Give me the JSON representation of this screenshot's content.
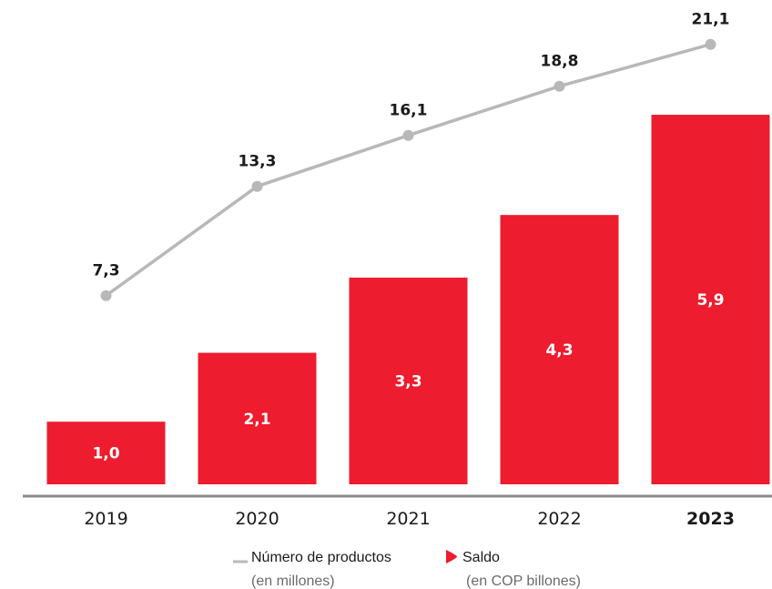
{
  "chart_data": {
    "type": "bar",
    "categories": [
      "2019",
      "2020",
      "2021",
      "2022",
      "2023"
    ],
    "highlight_category": "2023",
    "series": [
      {
        "name": "Saldo",
        "unit": "(en COP billones)",
        "type": "bar",
        "values": [
          1.0,
          2.1,
          3.3,
          4.3,
          5.9
        ],
        "labels": [
          "1,0",
          "2,1",
          "3,3",
          "4,3",
          "5,9"
        ],
        "color": "#ED1C2E"
      },
      {
        "name": "Número de productos",
        "unit": "(en millones)",
        "type": "line",
        "values": [
          7.3,
          13.3,
          16.1,
          18.8,
          21.1
        ],
        "labels": [
          "7,3",
          "13,3",
          "16,1",
          "18,8",
          "21,1"
        ],
        "color": "#B8B8B8"
      }
    ],
    "grid": false,
    "legend_position": "bottom-center"
  },
  "colors": {
    "bar": "#ED1C2E",
    "line": "#B8B8B8",
    "axis": "#8A8A8A",
    "text": "#1A1A1A",
    "muted_text": "#6B6B6B"
  }
}
